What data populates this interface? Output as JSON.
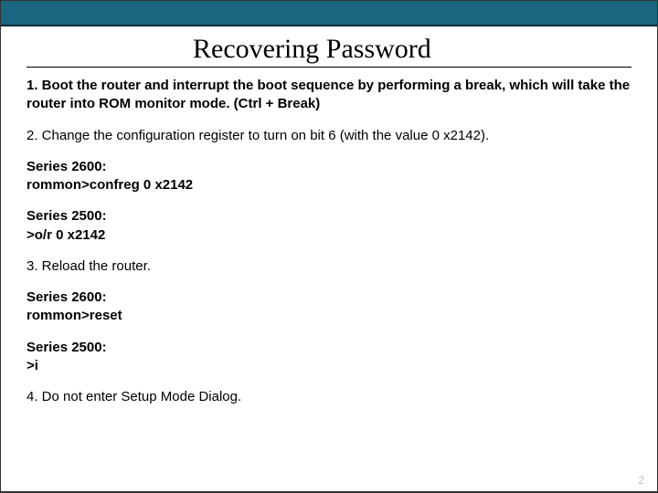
{
  "style": {
    "top_bar_color": "#1b6581",
    "title_font": "Times New Roman",
    "title_fontsize": 30,
    "body_font": "Arial",
    "body_fontsize": 15,
    "page_num_color": "#bfbfbf",
    "background_color": "#ffffff"
  },
  "title": "Recovering Password",
  "step1_a": "1. Boot the router and interrupt the boot sequence by performing a break, which will take the router into ROM monitor mode. ",
  "step1_b": "(Ctrl + Break)",
  "step2": "2. Change the configuration register to turn on bit 6 (with the value 0 x2142).",
  "series2600_label_a": "Series 2600:",
  "series2600_cmd_a": "rommon>confreg 0 x2142",
  "series2500_label_a": "Series 2500:",
  "series2500_cmd_a": ">o/r 0 x2142",
  "step3": "3. Reload the router.",
  "series2600_label_b": "Series 2600:",
  "series2600_cmd_b": "rommon>reset",
  "series2500_label_b": "Series 2500:",
  "series2500_cmd_b": ">i",
  "step4": "4. Do not enter Setup Mode Dialog.",
  "page_number": "2"
}
